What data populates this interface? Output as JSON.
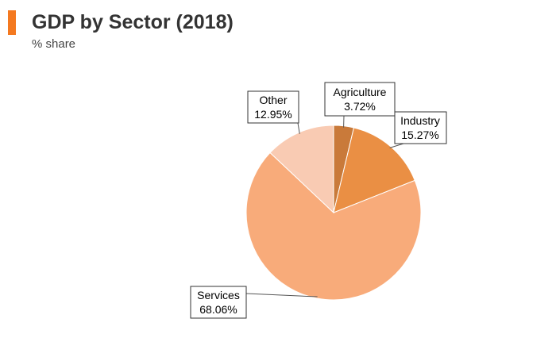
{
  "header": {
    "title": "GDP by Sector (2018)",
    "subtitle": "% share",
    "accent_color": "#f47920"
  },
  "chart_data": {
    "type": "pie",
    "title": "GDP by Sector (2018)",
    "subtitle": "% share",
    "start": "12 o'clock",
    "direction": "clockwise",
    "slices": [
      {
        "label": "Agriculture",
        "value": 3.72,
        "display": "3.72%",
        "color": "#c97a3a"
      },
      {
        "label": "Industry",
        "value": 15.27,
        "display": "15.27%",
        "color": "#ea8f44"
      },
      {
        "label": "Services",
        "value": 68.06,
        "display": "68.06%",
        "color": "#f8ab7a"
      },
      {
        "label": "Other",
        "value": 12.95,
        "display": "12.95%",
        "color": "#f9cbb3"
      }
    ]
  }
}
